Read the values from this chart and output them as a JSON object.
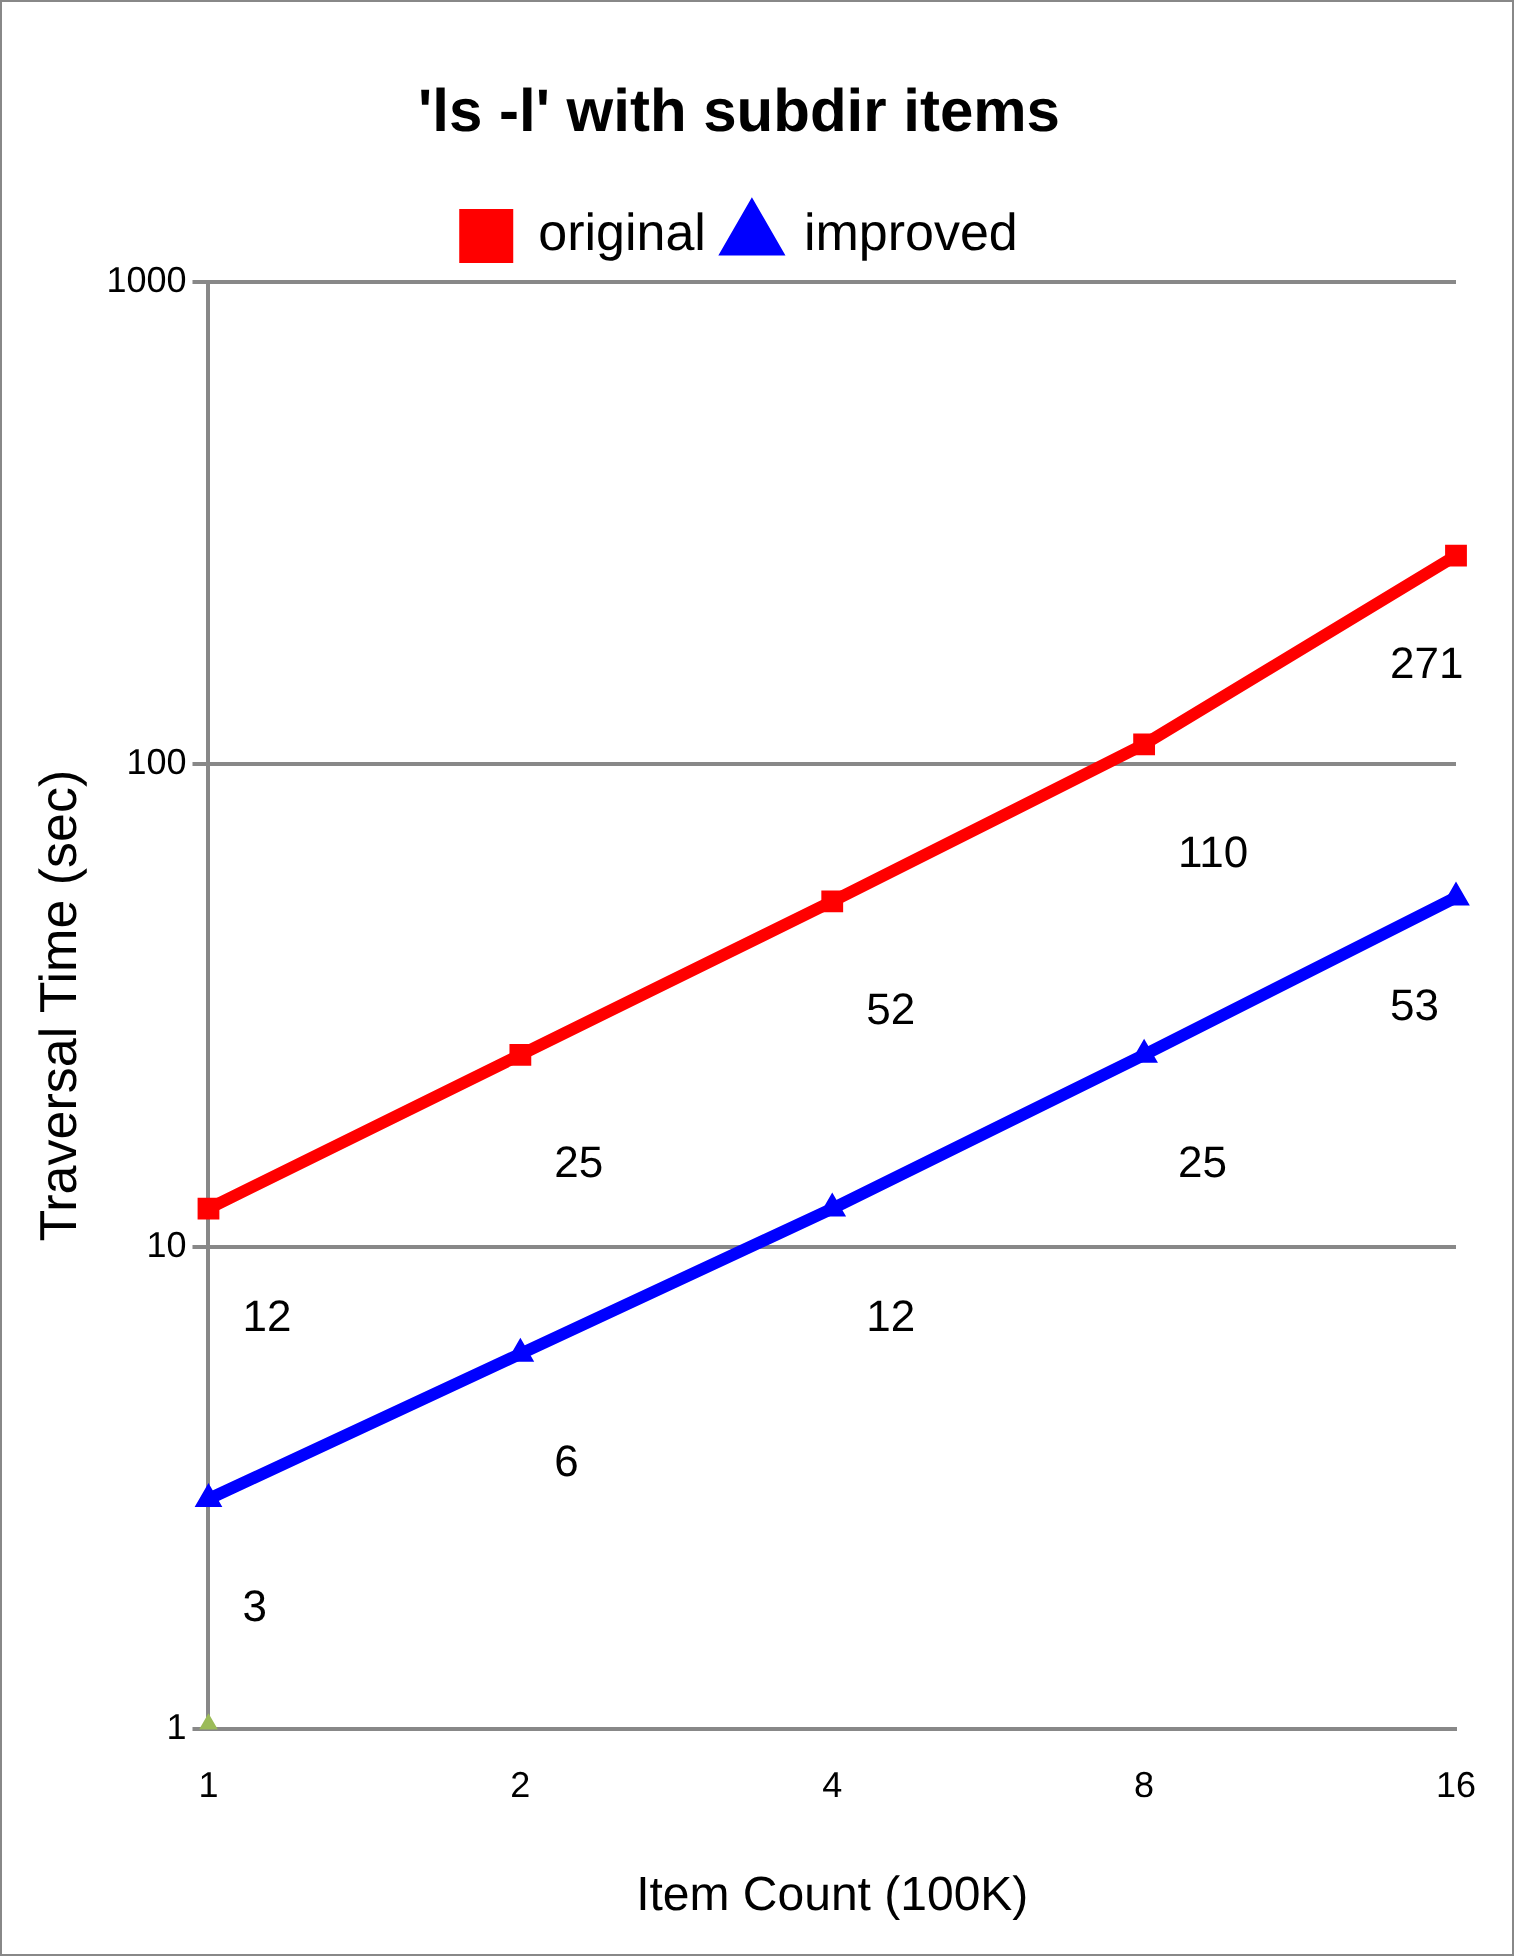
{
  "chart_data": {
    "type": "line",
    "title": "'ls -l' with subdir items",
    "xlabel": "Item Count (100K)",
    "ylabel": "Traversal Time (sec)",
    "categories": [
      "1",
      "2",
      "4",
      "8",
      "16"
    ],
    "series": [
      {
        "name": "original",
        "color": "#ff0000",
        "marker": "square",
        "values": [
          12,
          25,
          52,
          110,
          271
        ],
        "value_labels": [
          "12",
          "25",
          "52",
          "110",
          "271"
        ]
      },
      {
        "name": "improved",
        "color": "#0000ff",
        "marker": "triangle",
        "values": [
          3,
          6,
          12,
          25,
          53
        ],
        "value_labels": [
          "3",
          "6",
          "12",
          "25",
          "53"
        ]
      },
      {
        "color": "#9bbb59",
        "marker": "triangle",
        "values": [
          1,
          null,
          null,
          null,
          null
        ]
      }
    ],
    "log": "y",
    "ylim": [
      1,
      1000
    ],
    "yticks": [
      1,
      10,
      100,
      1000
    ],
    "grid": "y",
    "legend": "top"
  }
}
